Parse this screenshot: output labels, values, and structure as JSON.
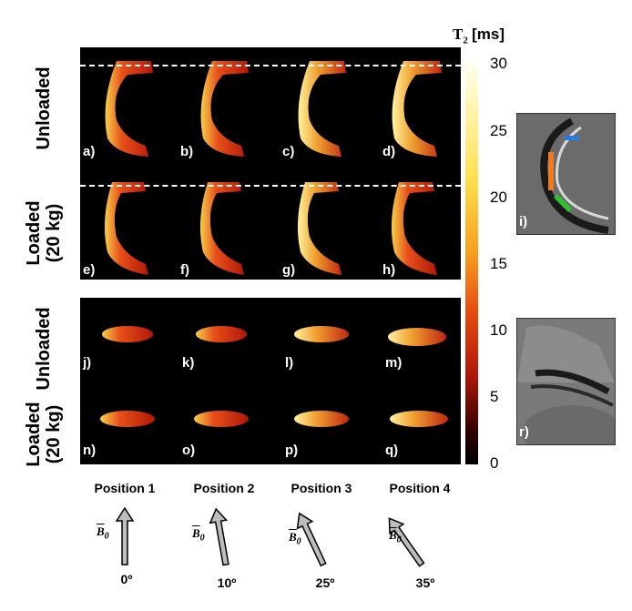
{
  "figure": {
    "colorbar": {
      "title": "T",
      "title_sub": "2",
      "title_unit": "[ms]",
      "ticks": [
        "30",
        "25",
        "20",
        "15",
        "10",
        "5",
        "0"
      ]
    },
    "top_block": {
      "row_labels": [
        "Unloaded",
        "Loaded\n(20 kg)"
      ],
      "cells": [
        "a)",
        "b)",
        "c)",
        "d)",
        "e)",
        "f)",
        "g)",
        "h)"
      ]
    },
    "bottom_block": {
      "row_labels": [
        "Unloaded",
        "Loaded\n(20 kg)"
      ],
      "cells": [
        "j)",
        "k)",
        "l)",
        "m)",
        "n)",
        "o)",
        "p)",
        "q)"
      ]
    },
    "insets": [
      "i)",
      "r)"
    ],
    "positions": [
      "Position 1",
      "Position 2",
      "Position 3",
      "Position 4"
    ],
    "angles": [
      "0º",
      "10º",
      "25º",
      "35º"
    ],
    "field_symbol": "B",
    "field_sub": "0"
  }
}
